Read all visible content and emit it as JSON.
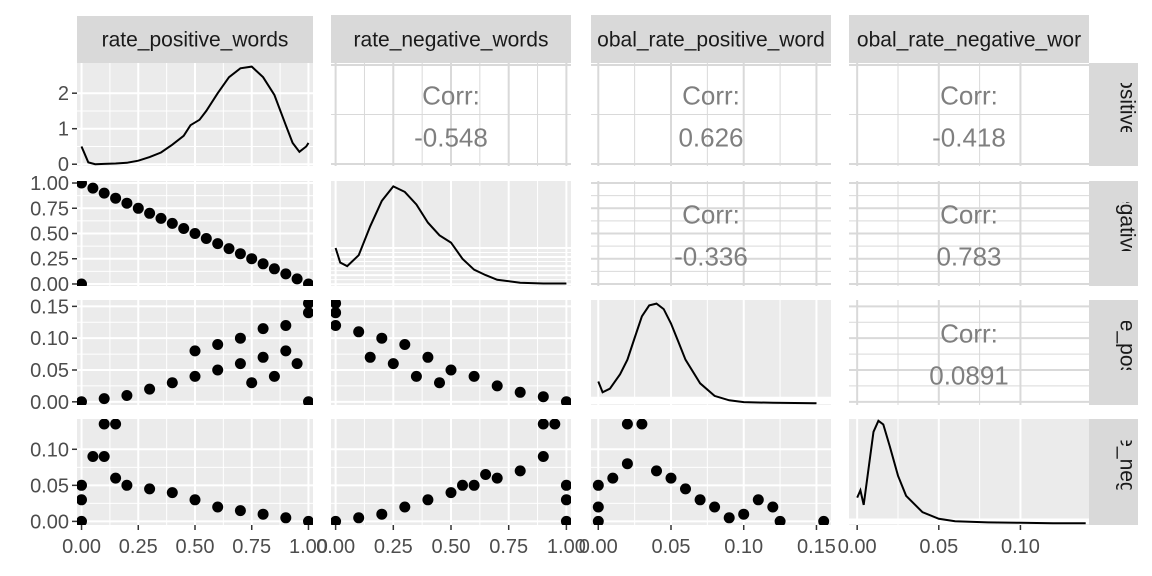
{
  "chart_data": {
    "type": "scatter",
    "variables": [
      "rate_positive_words",
      "rate_negative_words",
      "global_rate_positive_words",
      "global_rate_negative_words"
    ],
    "column_strip_labels": [
      "rate_positive_words",
      "rate_negative_words",
      "obal_rate_positive_word",
      "obal_rate_negative_wor"
    ],
    "row_strip_labels": [
      "positive_w",
      "negative_w",
      "ate_positiv",
      "ate_negativ"
    ],
    "axis_ranges": {
      "rate_positive_words": [
        -0.02,
        1.02
      ],
      "rate_negative_words": [
        -0.02,
        1.02
      ],
      "global_rate_positive_words": [
        -0.005,
        0.16
      ],
      "global_rate_negative_words": [
        -0.005,
        0.142
      ]
    },
    "x_ticks": [
      {
        "values": [
          0,
          0.25,
          0.5,
          0.75,
          1
        ],
        "labels": [
          "0.00",
          "0.25",
          "0.50",
          "0.75",
          "1.00"
        ]
      },
      {
        "values": [
          0,
          0.25,
          0.5,
          0.75,
          1
        ],
        "labels": [
          "0.00",
          "0.25",
          "0.50",
          "0.75",
          "1.00"
        ]
      },
      {
        "values": [
          0,
          0.05,
          0.1,
          0.15
        ],
        "labels": [
          "0.00",
          "0.05",
          "0.10",
          "0.15"
        ]
      },
      {
        "values": [
          0,
          0.05,
          0.1
        ],
        "labels": [
          "0.00",
          "0.05",
          "0.10"
        ]
      }
    ],
    "y_ticks": [
      {
        "values": [
          0,
          1,
          2
        ],
        "labels": [
          "0",
          "1",
          "2"
        ]
      },
      {
        "values": [
          0,
          0.25,
          0.5,
          0.75,
          1
        ],
        "labels": [
          "0.00",
          "0.25",
          "0.50",
          "0.75",
          "1.00"
        ]
      },
      {
        "values": [
          0,
          0.05,
          0.1,
          0.15
        ],
        "labels": [
          "0.00",
          "0.05",
          "0.10",
          "0.15"
        ]
      },
      {
        "values": [
          0,
          0.05,
          0.1
        ],
        "labels": [
          "0.00",
          "0.05",
          "0.10"
        ]
      }
    ],
    "density_ylim": [
      -0.05,
      2.85
    ],
    "densities": [
      {
        "variable": "rate_positive_words",
        "x": [
          0,
          0.01,
          0.03,
          0.06,
          0.1,
          0.15,
          0.2,
          0.25,
          0.3,
          0.35,
          0.4,
          0.45,
          0.48,
          0.52,
          0.55,
          0.6,
          0.65,
          0.7,
          0.75,
          0.8,
          0.85,
          0.9,
          0.93,
          0.96,
          0.99,
          1.0
        ],
        "y": [
          0.5,
          0.35,
          0.05,
          0.0,
          0.01,
          0.02,
          0.04,
          0.1,
          0.2,
          0.33,
          0.55,
          0.8,
          1.1,
          1.25,
          1.5,
          2.0,
          2.45,
          2.7,
          2.75,
          2.45,
          1.95,
          1.1,
          0.6,
          0.35,
          0.5,
          0.6
        ]
      },
      {
        "variable": "rate_negative_words",
        "x": [
          0,
          0.02,
          0.05,
          0.1,
          0.15,
          0.2,
          0.25,
          0.3,
          0.35,
          0.4,
          0.45,
          0.5,
          0.55,
          0.6,
          0.65,
          0.7,
          0.8,
          0.9,
          1.0
        ],
        "y": [
          1.0,
          0.6,
          0.5,
          0.8,
          1.6,
          2.3,
          2.7,
          2.55,
          2.2,
          1.7,
          1.35,
          1.15,
          0.7,
          0.4,
          0.25,
          0.12,
          0.04,
          0.02,
          0.02
        ]
      },
      {
        "variable": "global_rate_positive_words",
        "x": [
          0,
          0.003,
          0.008,
          0.015,
          0.02,
          0.025,
          0.03,
          0.035,
          0.04,
          0.045,
          0.05,
          0.055,
          0.06,
          0.07,
          0.08,
          0.09,
          0.1,
          0.12,
          0.15
        ],
        "y": [
          0.6,
          0.3,
          0.4,
          0.8,
          1.2,
          1.8,
          2.4,
          2.7,
          2.75,
          2.6,
          2.2,
          1.7,
          1.2,
          0.55,
          0.2,
          0.08,
          0.03,
          0.01,
          0.0
        ]
      },
      {
        "variable": "global_rate_negative_words",
        "x": [
          0,
          0.002,
          0.004,
          0.007,
          0.01,
          0.013,
          0.016,
          0.02,
          0.025,
          0.03,
          0.04,
          0.05,
          0.06,
          0.08,
          0.1,
          0.12,
          0.14
        ],
        "y": [
          0.7,
          0.9,
          0.5,
          1.5,
          2.5,
          2.8,
          2.7,
          2.1,
          1.3,
          0.75,
          0.3,
          0.12,
          0.05,
          0.02,
          0.01,
          0.0,
          0.0
        ]
      }
    ],
    "correlations": [
      {
        "row": 0,
        "col": 1,
        "label": "Corr:",
        "value": "-0.548"
      },
      {
        "row": 0,
        "col": 2,
        "label": "Corr:",
        "value": "0.626"
      },
      {
        "row": 0,
        "col": 3,
        "label": "Corr:",
        "value": "-0.418"
      },
      {
        "row": 1,
        "col": 2,
        "label": "Corr:",
        "value": "-0.336"
      },
      {
        "row": 1,
        "col": 3,
        "label": "Corr:",
        "value": "0.783"
      },
      {
        "row": 2,
        "col": 3,
        "label": "Corr:",
        "value": "0.0891"
      }
    ],
    "scatter_panels": [
      {
        "row": 1,
        "col": 0,
        "x_var": "rate_positive_words",
        "y_var": "rate_negative_words",
        "points": [
          [
            0,
            1
          ],
          [
            0,
            0
          ],
          [
            0.05,
            0.95
          ],
          [
            0.1,
            0.9
          ],
          [
            0.15,
            0.85
          ],
          [
            0.2,
            0.8
          ],
          [
            0.25,
            0.75
          ],
          [
            0.3,
            0.7
          ],
          [
            0.35,
            0.65
          ],
          [
            0.4,
            0.6
          ],
          [
            0.45,
            0.55
          ],
          [
            0.5,
            0.5
          ],
          [
            0.55,
            0.45
          ],
          [
            0.6,
            0.4
          ],
          [
            0.65,
            0.35
          ],
          [
            0.7,
            0.3
          ],
          [
            0.75,
            0.25
          ],
          [
            0.8,
            0.2
          ],
          [
            0.85,
            0.15
          ],
          [
            0.9,
            0.1
          ],
          [
            0.95,
            0.05
          ],
          [
            1,
            0
          ]
        ]
      },
      {
        "row": 2,
        "col": 0,
        "x_var": "rate_positive_words",
        "y_var": "global_rate_positive_words",
        "points": [
          [
            0,
            0
          ],
          [
            0.1,
            0.005
          ],
          [
            0.2,
            0.01
          ],
          [
            0.3,
            0.02
          ],
          [
            0.4,
            0.03
          ],
          [
            0.5,
            0.04
          ],
          [
            0.6,
            0.05
          ],
          [
            0.7,
            0.06
          ],
          [
            0.8,
            0.07
          ],
          [
            0.9,
            0.08
          ],
          [
            1,
            0.155
          ],
          [
            1,
            0.14
          ],
          [
            0.9,
            0.12
          ],
          [
            0.8,
            0.115
          ],
          [
            0.7,
            0.1
          ],
          [
            0.6,
            0.09
          ],
          [
            0.5,
            0.08
          ],
          [
            1,
            0
          ],
          [
            0.95,
            0.06
          ],
          [
            0.85,
            0.04
          ],
          [
            0.75,
            0.03
          ]
        ]
      },
      {
        "row": 2,
        "col": 1,
        "x_var": "rate_negative_words",
        "y_var": "global_rate_positive_words",
        "points": [
          [
            0,
            0.155
          ],
          [
            0,
            0.14
          ],
          [
            0,
            0.12
          ],
          [
            0.1,
            0.11
          ],
          [
            0.2,
            0.1
          ],
          [
            0.3,
            0.09
          ],
          [
            0.4,
            0.07
          ],
          [
            0.5,
            0.05
          ],
          [
            0.6,
            0.04
          ],
          [
            0.7,
            0.025
          ],
          [
            0.8,
            0.015
          ],
          [
            0.9,
            0.008
          ],
          [
            1,
            0
          ],
          [
            0.25,
            0.06
          ],
          [
            0.15,
            0.07
          ],
          [
            0.35,
            0.04
          ],
          [
            0.45,
            0.03
          ]
        ]
      },
      {
        "row": 3,
        "col": 0,
        "x_var": "rate_positive_words",
        "y_var": "global_rate_negative_words",
        "points": [
          [
            0,
            0.05
          ],
          [
            0,
            0.03
          ],
          [
            0,
            0.0
          ],
          [
            0.1,
            0.135
          ],
          [
            0.15,
            0.135
          ],
          [
            0.05,
            0.09
          ],
          [
            0.1,
            0.09
          ],
          [
            0.15,
            0.06
          ],
          [
            0.2,
            0.05
          ],
          [
            0.3,
            0.045
          ],
          [
            0.4,
            0.04
          ],
          [
            0.5,
            0.03
          ],
          [
            0.6,
            0.02
          ],
          [
            0.7,
            0.015
          ],
          [
            0.8,
            0.01
          ],
          [
            0.9,
            0.005
          ],
          [
            1,
            0
          ]
        ]
      },
      {
        "row": 3,
        "col": 1,
        "x_var": "rate_negative_words",
        "y_var": "global_rate_negative_words",
        "points": [
          [
            0,
            0
          ],
          [
            0.1,
            0.005
          ],
          [
            0.2,
            0.01
          ],
          [
            0.3,
            0.02
          ],
          [
            0.4,
            0.03
          ],
          [
            0.5,
            0.04
          ],
          [
            0.6,
            0.05
          ],
          [
            0.7,
            0.06
          ],
          [
            0.8,
            0.07
          ],
          [
            0.9,
            0.09
          ],
          [
            0.95,
            0.135
          ],
          [
            0.9,
            0.135
          ],
          [
            1,
            0.05
          ],
          [
            1,
            0.03
          ],
          [
            1,
            0.0
          ],
          [
            0.65,
            0.065
          ],
          [
            0.55,
            0.05
          ]
        ]
      },
      {
        "row": 3,
        "col": 2,
        "x_var": "global_rate_positive_words",
        "y_var": "global_rate_negative_words",
        "points": [
          [
            0,
            0.05
          ],
          [
            0,
            0.02
          ],
          [
            0,
            0
          ],
          [
            0.01,
            0.06
          ],
          [
            0.02,
            0.135
          ],
          [
            0.03,
            0.135
          ],
          [
            0.02,
            0.08
          ],
          [
            0.04,
            0.07
          ],
          [
            0.05,
            0.06
          ],
          [
            0.06,
            0.045
          ],
          [
            0.07,
            0.03
          ],
          [
            0.08,
            0.02
          ],
          [
            0.1,
            0.01
          ],
          [
            0.11,
            0.03
          ],
          [
            0.12,
            0.02
          ],
          [
            0.125,
            0.0
          ],
          [
            0.155,
            0.0
          ],
          [
            0.09,
            0.005
          ]
        ]
      }
    ],
    "grid": true
  }
}
